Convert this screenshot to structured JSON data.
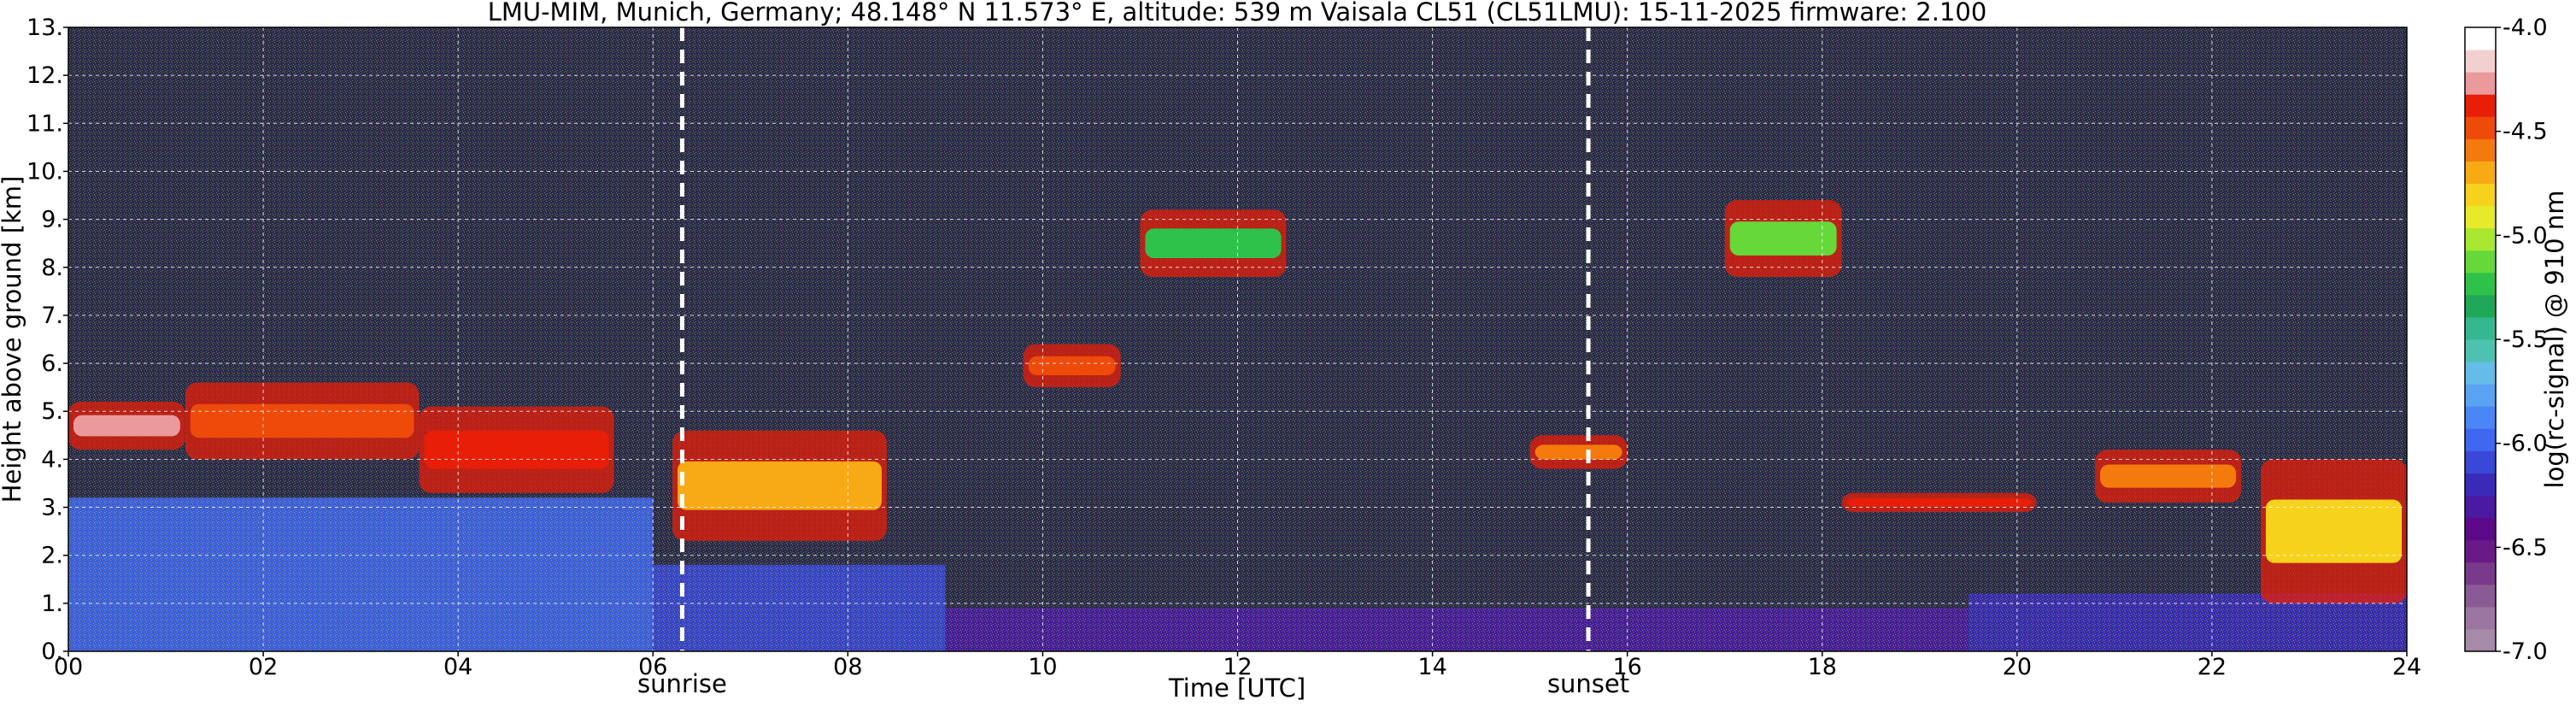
{
  "chart_data": {
    "type": "heatmap",
    "title": "LMU-MIM, Munich, Germany; 48.148° N 11.573° E, altitude: 539 m    Vaisala CL51 (CL51LMU): 15-11-2025    firmware: 2.100",
    "xlabel": "Time [UTC]",
    "ylabel": "Height above ground [km]",
    "colorbar_label": "log(rc-signal) @ 910 nm",
    "xlim": [
      0,
      24
    ],
    "ylim": [
      0,
      13
    ],
    "clim": [
      -7.0,
      -4.0
    ],
    "grid": true,
    "x_ticks": [
      {
        "v": 0,
        "label": "00"
      },
      {
        "v": 2,
        "label": "02"
      },
      {
        "v": 4,
        "label": "04"
      },
      {
        "v": 6,
        "label": "06"
      },
      {
        "v": 8,
        "label": "08"
      },
      {
        "v": 10,
        "label": "10"
      },
      {
        "v": 12,
        "label": "12"
      },
      {
        "v": 14,
        "label": "14"
      },
      {
        "v": 16,
        "label": "16"
      },
      {
        "v": 18,
        "label": "18"
      },
      {
        "v": 20,
        "label": "20"
      },
      {
        "v": 22,
        "label": "22"
      },
      {
        "v": 24,
        "label": "24"
      }
    ],
    "y_ticks": [
      {
        "v": 0,
        "label": "0."
      },
      {
        "v": 1,
        "label": "1."
      },
      {
        "v": 2,
        "label": "2."
      },
      {
        "v": 3,
        "label": "3."
      },
      {
        "v": 4,
        "label": "4."
      },
      {
        "v": 5,
        "label": "5."
      },
      {
        "v": 6,
        "label": "6."
      },
      {
        "v": 7,
        "label": "7."
      },
      {
        "v": 8,
        "label": "8."
      },
      {
        "v": 9,
        "label": "9."
      },
      {
        "v": 10,
        "label": "10."
      },
      {
        "v": 11,
        "label": "11."
      },
      {
        "v": 12,
        "label": "12."
      },
      {
        "v": 13,
        "label": "13."
      }
    ],
    "colorbar_ticks": [
      {
        "v": -4.0,
        "label": "-4.0"
      },
      {
        "v": -4.5,
        "label": "-4.5"
      },
      {
        "v": -5.0,
        "label": "-5.0"
      },
      {
        "v": -5.5,
        "label": "-5.5"
      },
      {
        "v": -6.0,
        "label": "-6.0"
      },
      {
        "v": -6.5,
        "label": "-6.5"
      },
      {
        "v": -7.0,
        "label": "-7.0"
      }
    ],
    "events": [
      {
        "label": "sunrise",
        "time": 6.3
      },
      {
        "label": "sunset",
        "time": 15.6
      }
    ],
    "colormap": [
      "#a68aa8",
      "#9a76a0",
      "#8a5a95",
      "#7a3a8c",
      "#6a1a86",
      "#5e0a88",
      "#4a1aa0",
      "#3a2ab8",
      "#3a48d8",
      "#3f67f0",
      "#4a86f5",
      "#5aa3f2",
      "#66bce8",
      "#4ec2b0",
      "#35b890",
      "#1fa858",
      "#2ec24a",
      "#66d83a",
      "#a8e830",
      "#e6ea2a",
      "#f7d21c",
      "#f8aa14",
      "#f47a0e",
      "#ee4a0a",
      "#e81e08",
      "#ea9a9a",
      "#f2d0d0",
      "#ffffff"
    ],
    "cloud_layers": [
      {
        "t0": 0.0,
        "t1": 1.2,
        "h0": 4.2,
        "h1": 5.2,
        "level": -4.2
      },
      {
        "t0": 1.2,
        "t1": 3.6,
        "h0": 4.0,
        "h1": 5.6,
        "level": -4.4
      },
      {
        "t0": 3.6,
        "t1": 5.6,
        "h0": 3.3,
        "h1": 5.1,
        "level": -4.3
      },
      {
        "t0": 6.2,
        "t1": 8.4,
        "h0": 2.3,
        "h1": 4.6,
        "level": -4.7
      },
      {
        "t0": 9.8,
        "t1": 10.8,
        "h0": 5.5,
        "h1": 6.4,
        "level": -4.5
      },
      {
        "t0": 15.0,
        "t1": 16.0,
        "h0": 3.8,
        "h1": 4.5,
        "level": -4.6
      },
      {
        "t0": 18.2,
        "t1": 20.2,
        "h0": 2.9,
        "h1": 3.3,
        "level": -4.3
      },
      {
        "t0": 20.8,
        "t1": 22.3,
        "h0": 3.1,
        "h1": 4.2,
        "level": -4.6
      },
      {
        "t0": 22.5,
        "t1": 24.0,
        "h0": 1.0,
        "h1": 4.0,
        "level": -4.8
      },
      {
        "t0": 17.0,
        "t1": 18.2,
        "h0": 7.8,
        "h1": 9.4,
        "level": -5.1
      },
      {
        "t0": 11.0,
        "t1": 12.5,
        "h0": 7.8,
        "h1": 9.2,
        "level": -5.2
      }
    ],
    "boundary_layer": [
      {
        "t0": 0.0,
        "t1": 6.0,
        "h0": 0.0,
        "h1": 3.2,
        "level": -6.0
      },
      {
        "t0": 6.0,
        "t1": 9.0,
        "h0": 0.0,
        "h1": 1.8,
        "level": -6.1
      },
      {
        "t0": 9.0,
        "t1": 19.5,
        "h0": 0.0,
        "h1": 0.9,
        "level": -6.3
      },
      {
        "t0": 19.5,
        "t1": 24.0,
        "h0": 0.0,
        "h1": 1.2,
        "level": -6.2
      }
    ]
  }
}
